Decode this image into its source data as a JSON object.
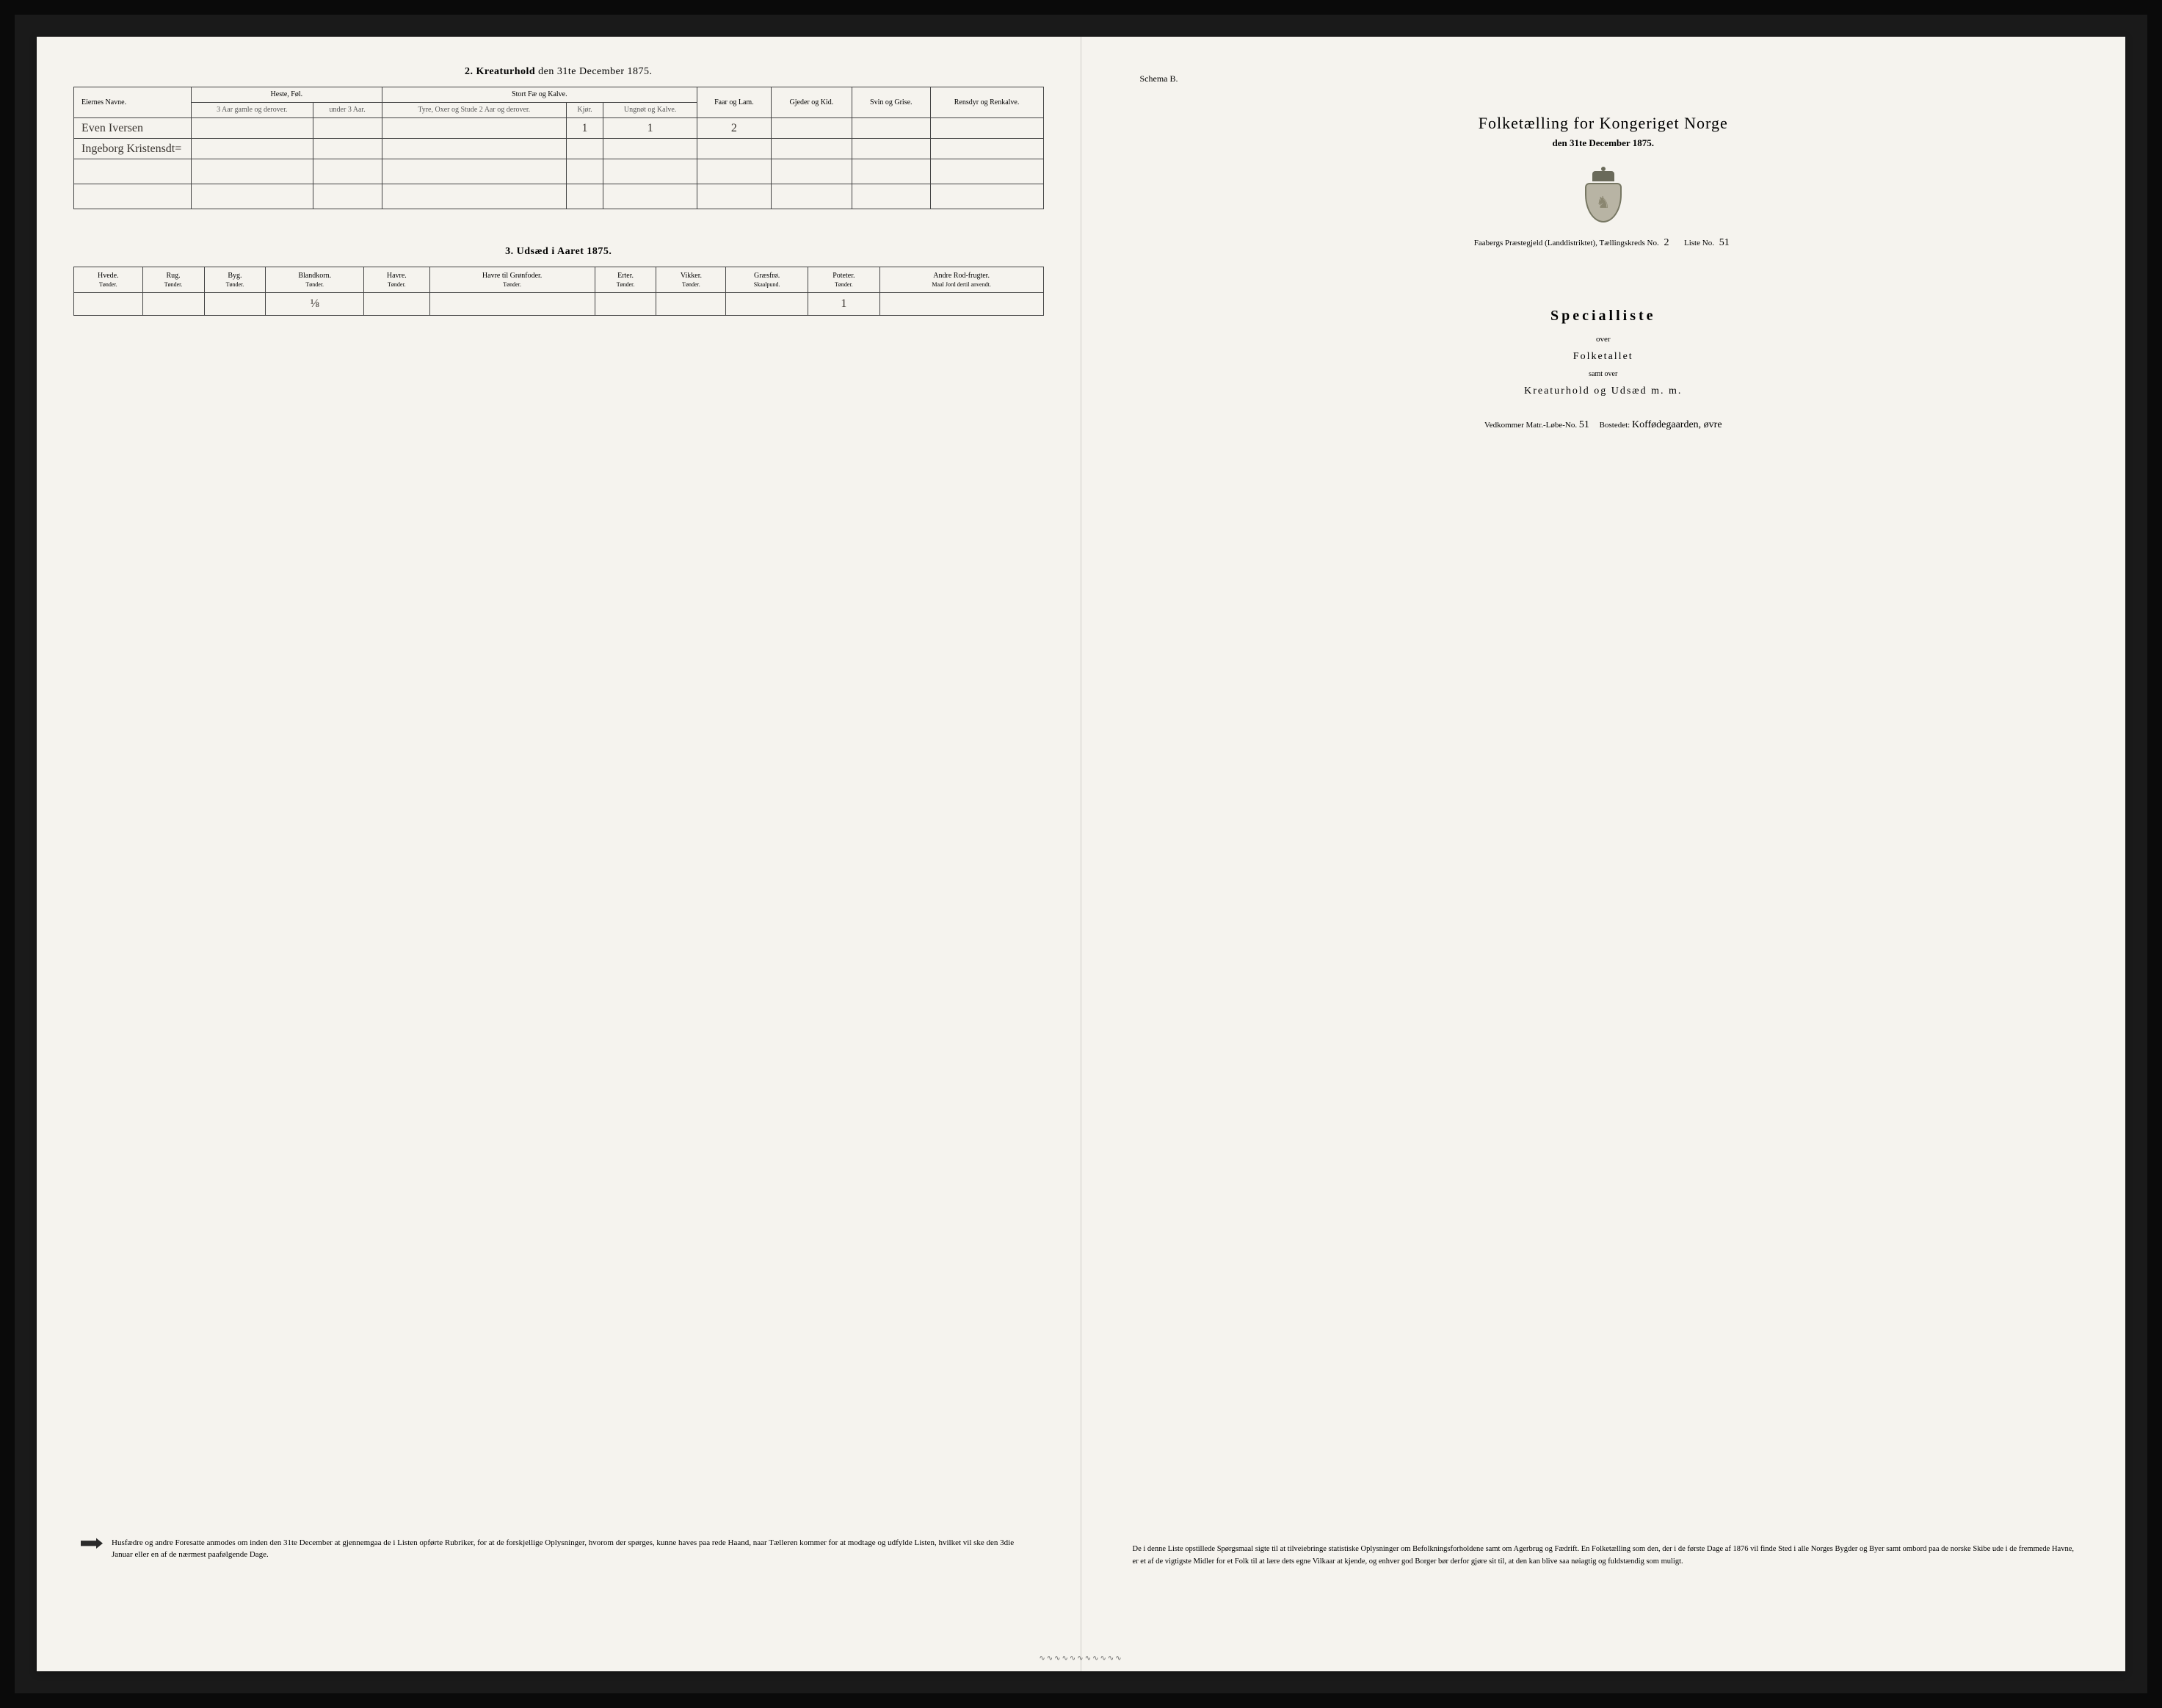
{
  "colors": {
    "page_bg": "#f5f3ee",
    "scan_bg": "#0a0a0a",
    "ink": "#2a2a2a",
    "rule": "#444444",
    "handwriting": "#3a3530"
  },
  "left": {
    "section2_title_num": "2.",
    "section2_title_main": "Kreaturhold",
    "section2_title_rest": "den 31te December 1875.",
    "table2": {
      "headers": {
        "owner": "Eiernes Navne.",
        "heste": "Heste, Føl.",
        "heste_sub1": "3 Aar gamle og derover.",
        "heste_sub2": "under 3 Aar.",
        "stort": "Stort Fæ og Kalve.",
        "stort_sub1": "Tyre, Oxer og Stude 2 Aar og derover.",
        "stort_sub2": "Kjør.",
        "stort_sub3": "Ungnøt og Kalve.",
        "faar": "Faar og Lam.",
        "gjeder": "Gjeder og Kid.",
        "svin": "Svin og Grise.",
        "rensdyr": "Rensdyr og Renkalve."
      },
      "rows": [
        {
          "owner": "Even Iversen",
          "v": [
            "",
            "",
            "",
            "1",
            "1",
            "2",
            "",
            "",
            ""
          ]
        },
        {
          "owner": "Ingeborg Kristensdt=",
          "v": [
            "",
            "",
            "",
            "",
            "",
            "",
            "",
            "",
            ""
          ]
        }
      ]
    },
    "section3_title_num": "3.",
    "section3_title_main": "Udsæd i Aaret 1875.",
    "table3": {
      "headers": [
        "Hvede.",
        "Rug.",
        "Byg.",
        "Blandkorn.",
        "Havre.",
        "Havre til Grønfoder.",
        "Erter.",
        "Vikker.",
        "Græsfrø.",
        "Poteter.",
        "Andre Rod-frugter."
      ],
      "units": [
        "Tønder.",
        "Tønder.",
        "Tønder.",
        "Tønder.",
        "Tønder.",
        "Tønder.",
        "Tønder.",
        "Tønder.",
        "Skaalpund.",
        "Tønder.",
        "Maal Jord dertil anvendt."
      ],
      "row": [
        "",
        "",
        "",
        "⅛",
        "",
        "",
        "",
        "",
        "",
        "1",
        ""
      ]
    },
    "footer_note": "Husfædre og andre Foresatte anmodes om inden den 31te December at gjennemgaa de i Listen opførte Rubriker, for at de forskjellige Oplysninger, hvorom der spørges, kunne haves paa rede Haand, naar Tælleren kommer for at modtage og udfylde Listen, hvilket vil ske den 3die Januar eller en af de nærmest paafølgende Dage."
  },
  "right": {
    "schema": "Schema B.",
    "main_title": "Folketælling for Kongeriget Norge",
    "subtitle": "den 31te December 1875.",
    "district_prefix": "Faabergs Præstegjeld (Landdistriktet), Tællingskreds No.",
    "district_no": "2",
    "liste_label": "Liste No.",
    "liste_no": "51",
    "special": "Specialliste",
    "over": "over",
    "folketal": "Folketallet",
    "samt": "samt over",
    "kreatur": "Kreaturhold og Udsæd m. m.",
    "vedkommer_label": "Vedkommer Matr.-Løbe-No.",
    "matr_no": "51",
    "bosted_label": "Bostedet:",
    "bosted": "Koffødegaarden, øvre",
    "footer": "De i denne Liste opstillede Spørgsmaal sigte til at tilveiebringe statistiske Oplysninger om Befolkningsforholdene samt om Agerbrug og Fædrift. En Folketælling som den, der i de første Dage af 1876 vil finde Sted i alle Norges Bygder og Byer samt ombord paa de norske Skibe ude i de fremmede Havne, er et af de vigtigste Midler for et Folk til at lære dets egne Vilkaar at kjende, og enhver god Borger bør derfor gjøre sit til, at den kan blive saa nøiagtig og fuldstændig som muligt."
  }
}
